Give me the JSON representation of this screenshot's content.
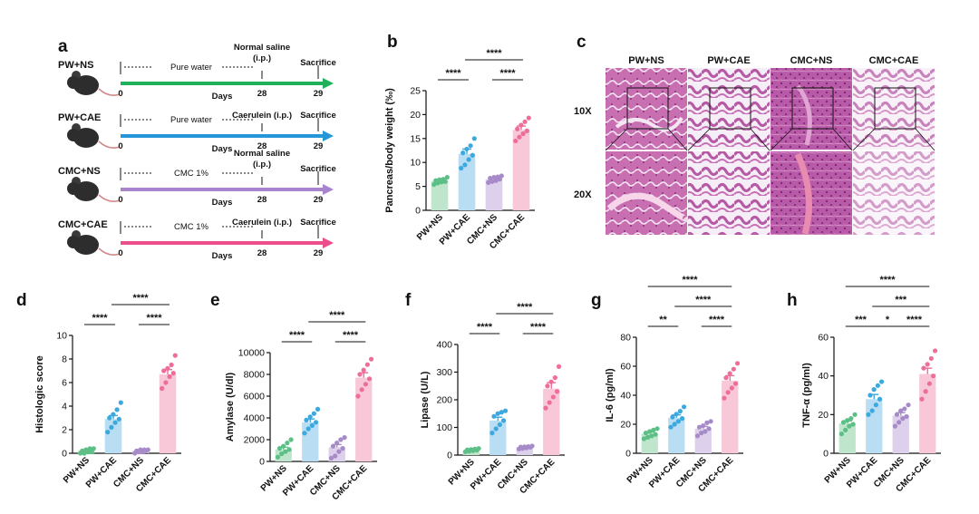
{
  "panel_letters": {
    "a": "a",
    "b": "b",
    "c": "c",
    "d": "d",
    "e": "e",
    "f": "f",
    "g": "g",
    "h": "h"
  },
  "colors": {
    "pw_ns": "#5cbf86",
    "pw_cae": "#3ca8de",
    "cmc_ns": "#a78bc9",
    "cmc_cae": "#ee6d99",
    "pw_ns_bar": "#bfe6cd",
    "pw_cae_bar": "#b9def3",
    "cmc_ns_bar": "#ddd0ec",
    "cmc_cae_bar": "#f8c8d9"
  },
  "panel_a": {
    "rows": [
      {
        "group": "PW+NS",
        "treatment": "Pure water",
        "injection_line1": "Normal saline",
        "injection_line2": "(i.p.)",
        "end_label": "Sacrifice",
        "day_start": "0",
        "day_mid": "28",
        "day_end": "29",
        "days_label": "Days",
        "color": "#1fb15a"
      },
      {
        "group": "PW+CAE",
        "treatment": "Pure water",
        "injection_line1": "Caerulein (i.p.)",
        "injection_line2": "",
        "end_label": "Sacrifice",
        "day_start": "0",
        "day_mid": "28",
        "day_end": "29",
        "days_label": "Days",
        "color": "#2596d8"
      },
      {
        "group": "CMC+NS",
        "treatment": "CMC 1%",
        "injection_line1": "Normal saline",
        "injection_line2": "(i.p.)",
        "end_label": "Sacrifice",
        "day_start": "0",
        "day_mid": "28",
        "day_end": "29",
        "days_label": "Days",
        "color": "#a884cf"
      },
      {
        "group": "CMC+CAE",
        "treatment": "CMC 1%",
        "injection_line1": "Caerulein (i.p.)",
        "injection_line2": "",
        "end_label": "Sacrifice",
        "day_start": "0",
        "day_mid": "28",
        "day_end": "29",
        "days_label": "Days",
        "color": "#ea4f8a"
      }
    ]
  },
  "panel_c": {
    "columns": [
      "PW+NS",
      "PW+CAE",
      "CMC+NS",
      "CMC+CAE"
    ],
    "rows": [
      "10X",
      "20X"
    ]
  },
  "chart_data": [
    {
      "panel": "b",
      "type": "bar",
      "ylabel": "Pancreas/body weight (‰)",
      "ylim": [
        0,
        25
      ],
      "yticks": [
        "0",
        "5",
        "10",
        "15",
        "20",
        "25"
      ],
      "categories": [
        "PW+NS",
        "PW+CAE",
        "CMC+NS",
        "CMC+CAE"
      ],
      "values": [
        6.1,
        11.8,
        6.5,
        16.8
      ],
      "errors": [
        0.4,
        1.0,
        0.4,
        0.8
      ],
      "points": [
        [
          5.4,
          5.7,
          5.9,
          6.0,
          6.2,
          6.4,
          6.5,
          6.9
        ],
        [
          8.8,
          9.5,
          10.6,
          11.5,
          12.0,
          12.8,
          13.5,
          15.0
        ],
        [
          5.8,
          6.0,
          6.2,
          6.5,
          6.7,
          6.9,
          7.0,
          7.2
        ],
        [
          14.5,
          15.3,
          16.0,
          16.6,
          17.0,
          17.8,
          18.5,
          19.3
        ]
      ],
      "significance": [
        {
          "from": 0,
          "to": 1,
          "label": "****",
          "level": 0
        },
        {
          "from": 2,
          "to": 3,
          "label": "****",
          "level": 0
        },
        {
          "from": 1,
          "to": 3,
          "label": "****",
          "level": 1
        }
      ]
    },
    {
      "panel": "d",
      "type": "bar",
      "ylabel": "Histologic score",
      "ylim": [
        0,
        10
      ],
      "yticks": [
        "0",
        "2",
        "4",
        "6",
        "8",
        "10"
      ],
      "categories": [
        "PW+NS",
        "PW+CAE",
        "CMC+NS",
        "CMC+CAE"
      ],
      "values": [
        0.2,
        2.9,
        0.2,
        6.7
      ],
      "errors": [
        0.1,
        0.3,
        0.1,
        0.4
      ],
      "points": [
        [
          0,
          0,
          0.1,
          0.1,
          0.2,
          0.3,
          0.4,
          0.4
        ],
        [
          1.8,
          2.2,
          2.6,
          2.9,
          3.0,
          3.3,
          3.7,
          4.3
        ],
        [
          0,
          0.1,
          0.1,
          0.2,
          0.2,
          0.3,
          0.3,
          0.3
        ],
        [
          5.5,
          6.0,
          6.5,
          6.8,
          7.0,
          7.2,
          7.5,
          8.3
        ]
      ],
      "significance": [
        {
          "from": 0,
          "to": 1,
          "label": "****",
          "level": 0
        },
        {
          "from": 2,
          "to": 3,
          "label": "****",
          "level": 0
        },
        {
          "from": 1,
          "to": 3,
          "label": "****",
          "level": 1
        }
      ]
    },
    {
      "panel": "e",
      "type": "bar",
      "ylabel": "Amylase (U/dl)",
      "ylim": [
        0,
        10000
      ],
      "yticks": [
        "0",
        "2000",
        "4000",
        "6000",
        "8000",
        "10000"
      ],
      "categories": [
        "PW+NS",
        "PW+CAE",
        "CMC+NS",
        "CMC+CAE"
      ],
      "values": [
        1100,
        3600,
        1300,
        7700
      ],
      "errors": [
        200,
        300,
        250,
        450
      ],
      "points": [
        [
          400,
          700,
          900,
          1100,
          1200,
          1400,
          1700,
          2000
        ],
        [
          2600,
          3000,
          3300,
          3600,
          3800,
          4100,
          4400,
          4800
        ],
        [
          300,
          500,
          900,
          1200,
          1400,
          1700,
          2000,
          2200
        ],
        [
          6000,
          6600,
          7100,
          7600,
          8000,
          8400,
          8900,
          9400
        ]
      ],
      "significance": [
        {
          "from": 0,
          "to": 1,
          "label": "****",
          "level": 0
        },
        {
          "from": 2,
          "to": 3,
          "label": "****",
          "level": 0
        },
        {
          "from": 1,
          "to": 3,
          "label": "****",
          "level": 1
        }
      ]
    },
    {
      "panel": "f",
      "type": "bar",
      "ylabel": "Lipase (U/L)",
      "ylim": [
        0,
        400
      ],
      "yticks": [
        "0",
        "100",
        "200",
        "300",
        "400"
      ],
      "categories": [
        "PW+NS",
        "PW+CAE",
        "CMC+NS",
        "CMC+CAE"
      ],
      "values": [
        18,
        125,
        28,
        240
      ],
      "errors": [
        2,
        12,
        2,
        22
      ],
      "points": [
        [
          12,
          14,
          16,
          18,
          19,
          20,
          22,
          24
        ],
        [
          80,
          95,
          110,
          125,
          140,
          150,
          155,
          160
        ],
        [
          22,
          24,
          26,
          28,
          29,
          30,
          31,
          33
        ],
        [
          170,
          190,
          210,
          230,
          250,
          265,
          280,
          320
        ]
      ],
      "significance": [
        {
          "from": 0,
          "to": 1,
          "label": "****",
          "level": 0
        },
        {
          "from": 2,
          "to": 3,
          "label": "****",
          "level": 0
        },
        {
          "from": 1,
          "to": 3,
          "label": "****",
          "level": 1
        }
      ]
    },
    {
      "panel": "g",
      "type": "bar",
      "ylabel": "IL-6 (pg/ml)",
      "ylim": [
        0,
        80
      ],
      "yticks": [
        "0",
        "20",
        "40",
        "60",
        "80"
      ],
      "categories": [
        "PW+NS",
        "PW+CAE",
        "CMC+NS",
        "CMC+CAE"
      ],
      "values": [
        13.5,
        24.5,
        17,
        50
      ],
      "errors": [
        1,
        2,
        1.5,
        3.5
      ],
      "points": [
        [
          10,
          11,
          12,
          13,
          14,
          15,
          16,
          17
        ],
        [
          18,
          20,
          22,
          24,
          25,
          27,
          29,
          32
        ],
        [
          12,
          14,
          15,
          17,
          18,
          19,
          21,
          22
        ],
        [
          38,
          42,
          45,
          48,
          52,
          55,
          58,
          62
        ]
      ],
      "significance": [
        {
          "from": 0,
          "to": 1,
          "label": "**",
          "level": 0
        },
        {
          "from": 2,
          "to": 3,
          "label": "****",
          "level": 0
        },
        {
          "from": 1,
          "to": 3,
          "label": "****",
          "level": 1
        },
        {
          "from": 0,
          "to": 3,
          "label": "****",
          "level": 2
        }
      ]
    },
    {
      "panel": "h",
      "type": "bar",
      "ylabel": "TNF-α (pg/ml)",
      "ylim": [
        0,
        60
      ],
      "yticks": [
        "0",
        "20",
        "40",
        "60"
      ],
      "categories": [
        "PW+NS",
        "PW+CAE",
        "CMC+NS",
        "CMC+CAE"
      ],
      "values": [
        15.5,
        28,
        19.5,
        41
      ],
      "errors": [
        1.2,
        2.4,
        1.5,
        3
      ],
      "points": [
        [
          10,
          12,
          14,
          15,
          16,
          17,
          18,
          20
        ],
        [
          20,
          22,
          25,
          28,
          30,
          33,
          35,
          37
        ],
        [
          14,
          16,
          18,
          19,
          20,
          22,
          23,
          25
        ],
        [
          28,
          32,
          36,
          40,
          44,
          46,
          49,
          53
        ]
      ],
      "significance": [
        {
          "from": 0,
          "to": 1,
          "label": "***",
          "level": 0
        },
        {
          "from": 1,
          "to": 2,
          "label": "*",
          "level": 0
        },
        {
          "from": 2,
          "to": 3,
          "label": "****",
          "level": 0
        },
        {
          "from": 1,
          "to": 3,
          "label": "***",
          "level": 1
        },
        {
          "from": 0,
          "to": 3,
          "label": "****",
          "level": 2
        }
      ]
    }
  ]
}
